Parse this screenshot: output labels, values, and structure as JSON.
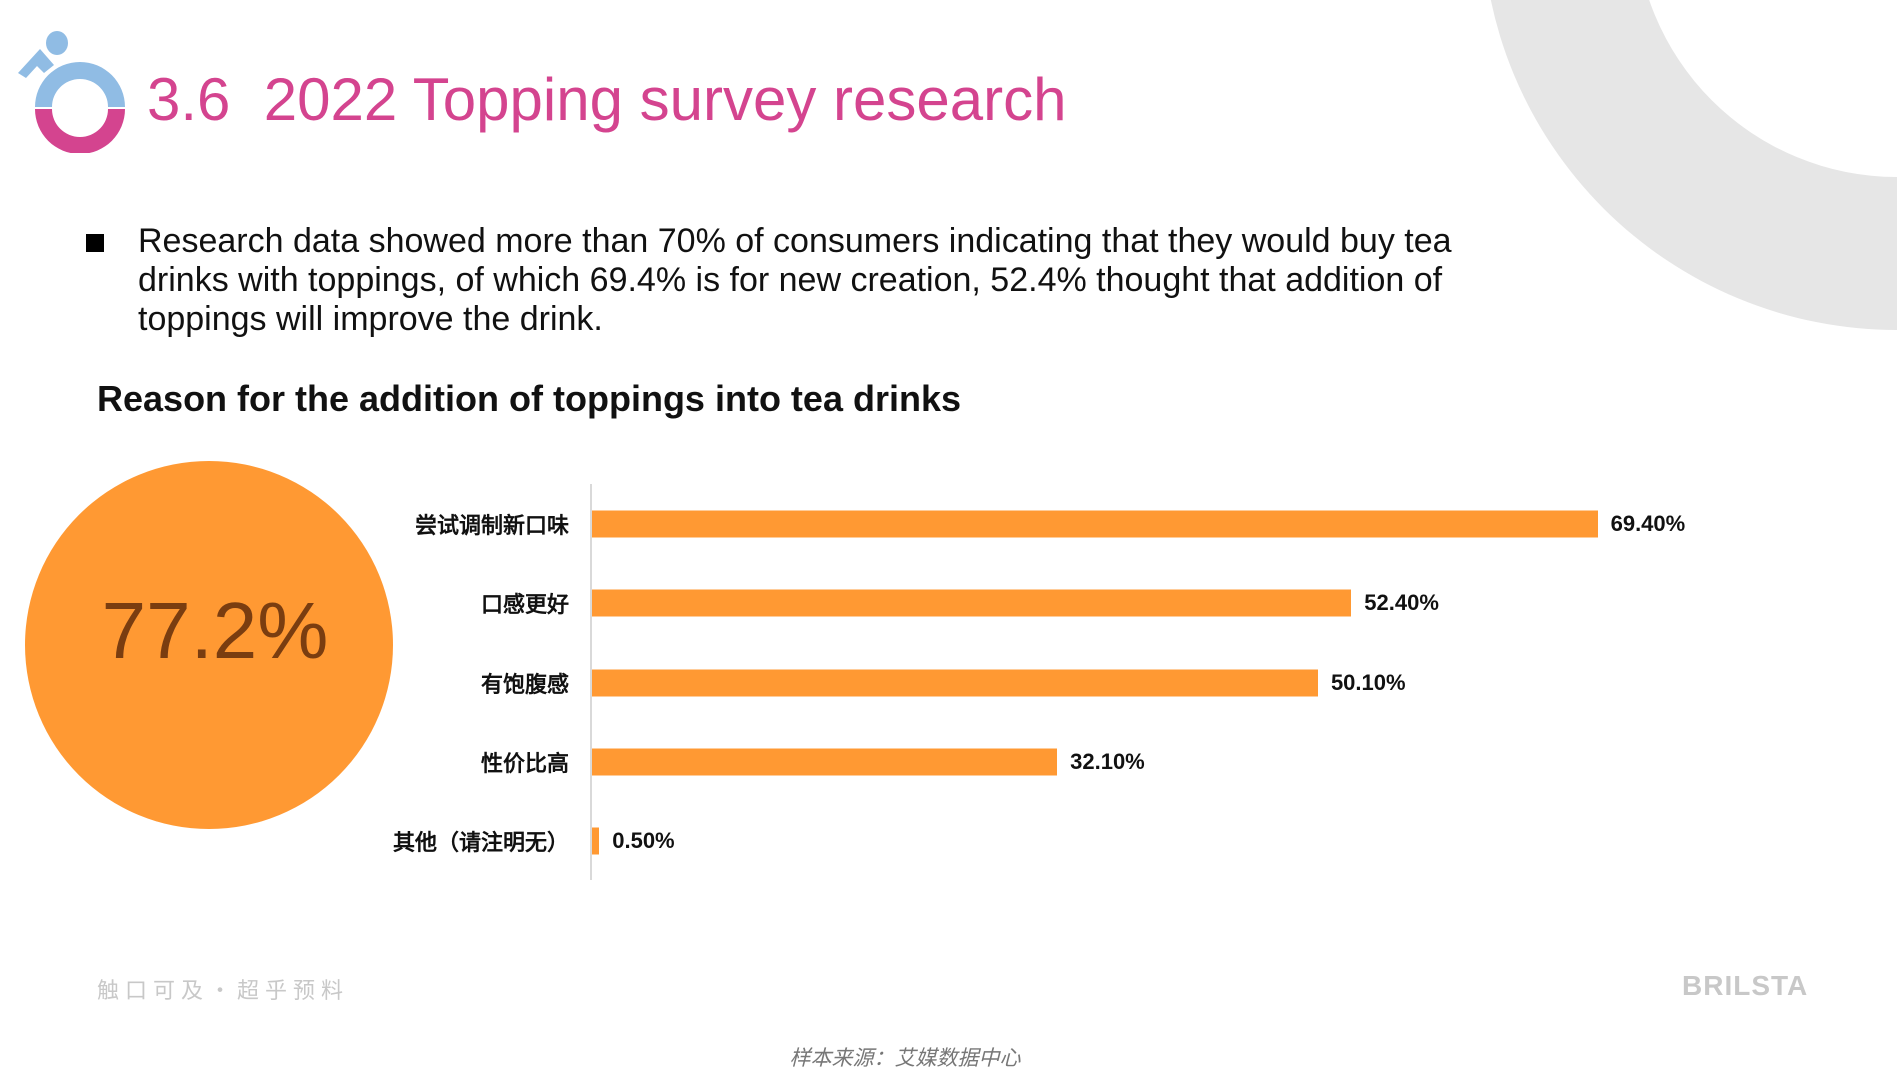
{
  "title": "3.6  2022 Topping survey research",
  "bullet": "Research data showed more than 70% of consumers indicating that they would buy tea drinks with toppings, of which 69.4% is for new creation, 52.4% thought that addition of toppings will improve the drink.",
  "colors": {
    "title": "#D4448F",
    "logo_blue": "#90BCE4",
    "logo_pink": "#D4448F",
    "bar": "#FF9933",
    "decor_ring": "#E6E6E6"
  },
  "highlight": {
    "value": "77.2%"
  },
  "chart_data": {
    "type": "bar",
    "orientation": "horizontal",
    "title": "Reason for the addition of toppings into tea drinks",
    "categories": [
      "尝试调制新口味",
      "口感更好",
      "有饱腹感",
      "性价比高",
      "其他（请注明无）"
    ],
    "values": [
      69.4,
      52.4,
      50.1,
      32.1,
      0.5
    ],
    "labels": [
      "69.40%",
      "52.40%",
      "50.10%",
      "32.10%",
      "0.50%"
    ],
    "unit": "%",
    "grid": false,
    "legend": "none"
  },
  "footer": {
    "slogan": "触口可及・超乎预料",
    "brand": "BRILSTA",
    "source": "样本来源：艾媒数据中心"
  }
}
